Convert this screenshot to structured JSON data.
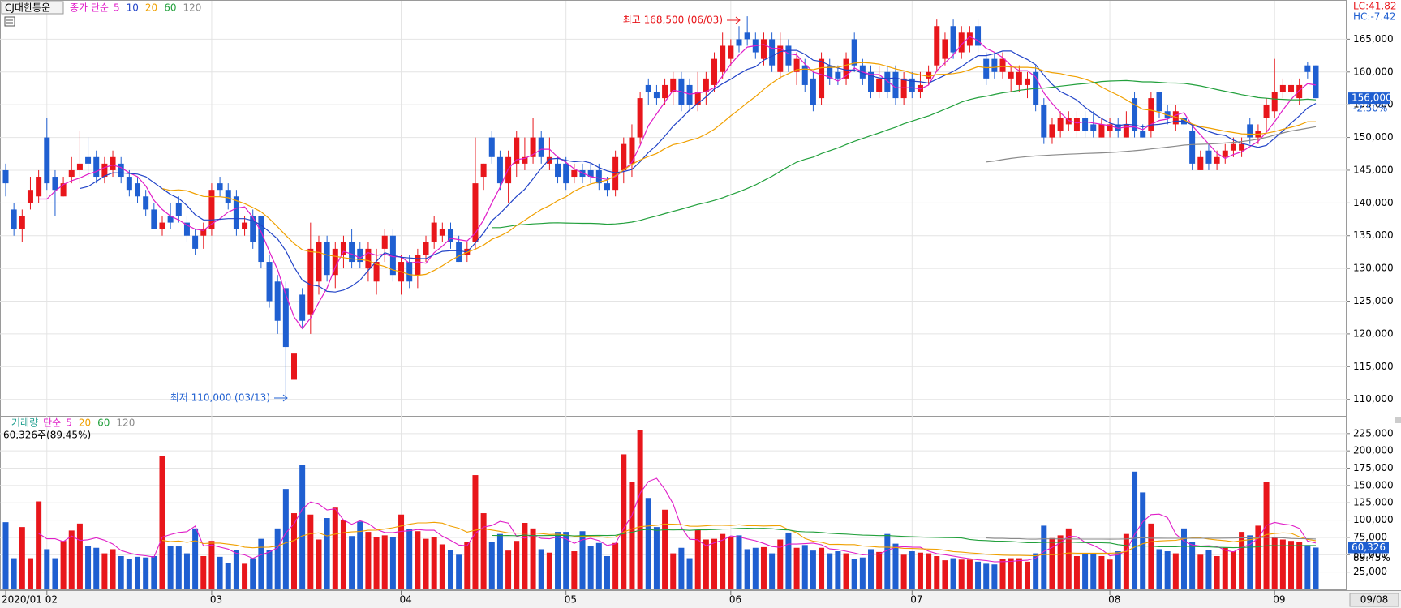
{
  "chart_data": {
    "type": "candlestick",
    "title": "CJ대한통운",
    "categories": [
      "2020/01",
      null,
      null,
      null,
      null,
      "02",
      null,
      null,
      null,
      null,
      null,
      null,
      null,
      null,
      null,
      null,
      null,
      null,
      null,
      null,
      null,
      null,
      null,
      null,
      null,
      "03",
      null,
      null,
      null,
      null,
      null,
      null,
      null,
      null,
      null,
      null,
      null,
      null,
      null,
      null,
      null,
      null,
      null,
      null,
      null,
      null,
      null,
      null,
      "04",
      null,
      null,
      null,
      null,
      null,
      null,
      null,
      null,
      null,
      null,
      null,
      null,
      null,
      null,
      null,
      null,
      null,
      null,
      null,
      "05",
      null,
      null,
      null,
      null,
      null,
      null,
      null,
      null,
      null,
      null,
      null,
      null,
      null,
      null,
      null,
      null,
      null,
      null,
      null,
      "06",
      null,
      null,
      null,
      null,
      null,
      null,
      null,
      null,
      null,
      null,
      null,
      null,
      null,
      null,
      null,
      null,
      null,
      null,
      null,
      null,
      null,
      "07",
      null,
      null,
      null,
      null,
      null,
      null,
      null,
      null,
      null,
      null,
      null,
      null,
      null,
      null,
      null,
      null,
      null,
      null,
      null,
      null,
      null,
      null,
      null,
      "08",
      null,
      null,
      null,
      null,
      null,
      null,
      null,
      null,
      null,
      null,
      null,
      null,
      null,
      null,
      null,
      null,
      null,
      null,
      null,
      "09",
      null,
      null,
      null,
      null,
      null
    ],
    "open": [
      145000,
      139000,
      136000,
      140000,
      141000,
      150000,
      144000,
      141000,
      144000,
      145000,
      147000,
      147000,
      144000,
      145000,
      146000,
      144000,
      143000,
      141000,
      139000,
      136000,
      138000,
      140000,
      137000,
      135000,
      135000,
      136000,
      143000,
      142000,
      141000,
      136000,
      138000,
      138000,
      131000,
      128000,
      127000,
      113000,
      126000,
      123000,
      128000,
      134000,
      129000,
      132000,
      134000,
      133000,
      130000,
      128000,
      133000,
      135000,
      128000,
      131000,
      129000,
      132000,
      134000,
      135000,
      136000,
      134000,
      132000,
      134000,
      144000,
      150000,
      147000,
      143000,
      146000,
      146000,
      147000,
      150000,
      146000,
      146000,
      146000,
      144000,
      145000,
      145000,
      145000,
      143000,
      142000,
      145000,
      146000,
      150000,
      158000,
      157000,
      156000,
      157000,
      159000,
      158000,
      155000,
      157000,
      158000,
      160000,
      162000,
      165000,
      166000,
      165000,
      162000,
      165000,
      160000,
      164000,
      160000,
      161000,
      159000,
      156000,
      161000,
      160000,
      159000,
      165000,
      161000,
      160000,
      157000,
      160000,
      160000,
      156000,
      159000,
      157000,
      159000,
      161000,
      162000,
      167000,
      163000,
      164000,
      167000,
      162000,
      162000,
      160000,
      159000,
      158000,
      158000,
      160000,
      155000,
      150000,
      151000,
      152000,
      151000,
      153000,
      152000,
      150000,
      151000,
      152000,
      150000,
      156000,
      151000,
      151000,
      157000,
      154000,
      152000,
      153000,
      151000,
      145000,
      148000,
      146000,
      147000,
      148000,
      148000,
      152000,
      150000,
      153000,
      154000,
      157000,
      157000,
      156000,
      161000,
      161000
    ],
    "high": [
      146000,
      140000,
      139000,
      144000,
      145000,
      153000,
      145000,
      144000,
      147000,
      151000,
      150000,
      148000,
      147000,
      148000,
      147000,
      145000,
      144000,
      142000,
      140000,
      138000,
      140000,
      141000,
      138000,
      136000,
      137000,
      143000,
      144000,
      143000,
      142000,
      138000,
      139000,
      138000,
      132000,
      129000,
      128000,
      118000,
      127000,
      137000,
      135000,
      135000,
      134000,
      135000,
      136000,
      134000,
      134000,
      133000,
      136000,
      136000,
      132000,
      132000,
      133000,
      135000,
      138000,
      137000,
      137000,
      135000,
      134000,
      150000,
      146000,
      151000,
      148000,
      148000,
      151000,
      150000,
      153000,
      151000,
      150000,
      147000,
      147000,
      146000,
      146000,
      146000,
      146000,
      144000,
      148000,
      150000,
      152000,
      157000,
      159000,
      158000,
      159000,
      160000,
      160000,
      159000,
      160000,
      160000,
      163000,
      166000,
      165000,
      167000,
      168500,
      166000,
      166000,
      166000,
      166000,
      165000,
      163000,
      162000,
      160000,
      163000,
      162000,
      161000,
      163000,
      166000,
      162000,
      161000,
      161000,
      161000,
      161000,
      160000,
      160000,
      160000,
      161000,
      168000,
      166000,
      168000,
      167000,
      167000,
      168000,
      163000,
      163000,
      163000,
      161000,
      161000,
      160000,
      161000,
      156000,
      153000,
      154000,
      154000,
      154000,
      154000,
      154000,
      153000,
      153000,
      153000,
      154000,
      157000,
      152000,
      157000,
      157000,
      155000,
      155000,
      154000,
      152000,
      148000,
      149000,
      148000,
      149000,
      150000,
      150000,
      153000,
      152000,
      156000,
      162000,
      159000,
      159000,
      159000,
      161500,
      161000
    ],
    "low": [
      141000,
      135000,
      134000,
      139000,
      140000,
      142000,
      138000,
      141000,
      143000,
      143000,
      144000,
      143000,
      143000,
      144000,
      143000,
      141000,
      140000,
      138000,
      136000,
      135000,
      136000,
      137000,
      134000,
      132000,
      133000,
      135000,
      141000,
      139000,
      135000,
      135000,
      133000,
      130000,
      124000,
      120000,
      110000,
      112000,
      121000,
      120000,
      126000,
      128000,
      127000,
      130000,
      130000,
      130000,
      128000,
      126000,
      131000,
      128000,
      126000,
      127000,
      127000,
      131000,
      133000,
      134000,
      133000,
      131000,
      131000,
      133000,
      142000,
      146000,
      142000,
      140000,
      144000,
      145000,
      146000,
      146000,
      145000,
      143000,
      142000,
      143000,
      143000,
      143000,
      142000,
      141000,
      141000,
      143000,
      144000,
      149000,
      155000,
      155000,
      155000,
      155000,
      154000,
      154000,
      154000,
      155000,
      157000,
      159000,
      161000,
      163000,
      164000,
      162000,
      161000,
      160000,
      159000,
      160000,
      158000,
      157000,
      154000,
      155000,
      158000,
      158000,
      158000,
      160000,
      158000,
      156000,
      156000,
      156000,
      155000,
      155000,
      156000,
      156000,
      158000,
      160000,
      161000,
      162000,
      162000,
      163000,
      163000,
      158000,
      159000,
      159000,
      157000,
      157000,
      156000,
      154000,
      149000,
      149000,
      150000,
      151000,
      150000,
      150000,
      150000,
      150000,
      150000,
      150000,
      150000,
      150000,
      150000,
      150000,
      153000,
      152000,
      151000,
      151000,
      145000,
      145000,
      145000,
      145000,
      146000,
      147000,
      147000,
      149000,
      149000,
      151000,
      153000,
      156000,
      156000,
      155000,
      159000,
      156000
    ],
    "close": [
      143000,
      136000,
      138000,
      142000,
      144000,
      143000,
      142000,
      143000,
      145000,
      146000,
      146000,
      144000,
      146000,
      147000,
      144000,
      142000,
      141000,
      139000,
      136000,
      137000,
      137000,
      138000,
      135000,
      133000,
      136000,
      142000,
      142000,
      140000,
      136000,
      137000,
      134000,
      131000,
      125000,
      122000,
      118000,
      117000,
      122000,
      133000,
      134000,
      129000,
      133000,
      134000,
      131000,
      131000,
      133000,
      131000,
      135000,
      129000,
      131000,
      128000,
      132000,
      134000,
      137000,
      136000,
      134000,
      131000,
      133000,
      143000,
      146000,
      147000,
      143000,
      147000,
      150000,
      147000,
      150000,
      147000,
      147000,
      144000,
      143000,
      145000,
      144000,
      144000,
      143000,
      142000,
      147000,
      149000,
      150000,
      156000,
      157000,
      156000,
      158000,
      159000,
      155000,
      155000,
      157000,
      159000,
      162000,
      164000,
      164000,
      164000,
      165000,
      163000,
      165000,
      161000,
      164000,
      161000,
      162000,
      158000,
      155000,
      162000,
      159000,
      159000,
      162000,
      161000,
      159000,
      157000,
      159000,
      157000,
      156000,
      159000,
      157000,
      158000,
      160000,
      167000,
      165000,
      163000,
      166000,
      166000,
      164000,
      159000,
      160000,
      162000,
      160000,
      160000,
      159000,
      155000,
      150000,
      152000,
      153000,
      153000,
      153000,
      151000,
      151000,
      152000,
      152000,
      151000,
      152000,
      151000,
      150000,
      156000,
      154000,
      153000,
      154000,
      152000,
      146000,
      147000,
      146000,
      147000,
      148000,
      149000,
      149000,
      150000,
      151000,
      155000,
      157000,
      158000,
      158000,
      158000,
      160000,
      156000
    ],
    "up_color": "#e8161b",
    "down_color": "#1f5fd1",
    "ylim": [
      108600,
      170000
    ],
    "yticks": [
      {
        "value": 110000,
        "label": "110,000"
      },
      {
        "value": 115000,
        "label": "115,000"
      },
      {
        "value": 120000,
        "label": "120,000"
      },
      {
        "value": 125000,
        "label": "125,000"
      },
      {
        "value": 130000,
        "label": "130,000"
      },
      {
        "value": 135000,
        "label": "135,000"
      },
      {
        "value": 140000,
        "label": "140,000"
      },
      {
        "value": 145000,
        "label": "145,000"
      },
      {
        "value": 150000,
        "label": "150,000"
      },
      {
        "value": 155000,
        "label": "155,000"
      },
      {
        "value": 160000,
        "label": "160,000"
      },
      {
        "value": 165000,
        "label": "165,000"
      }
    ],
    "grid": true,
    "ma_label": "종가 단순",
    "ma": [
      {
        "period": 5,
        "color": "#e01ec8"
      },
      {
        "period": 10,
        "color": "#2244c8"
      },
      {
        "period": 20,
        "color": "#f0a000"
      },
      {
        "period": 60,
        "color": "#22a03c"
      },
      {
        "period": 120,
        "color": "#8a8a8a"
      }
    ],
    "volume": {
      "name": "거래량",
      "ma_label": "단순",
      "values": [
        97000,
        45000,
        90000,
        45000,
        127000,
        58000,
        45000,
        70000,
        85000,
        95000,
        63000,
        60000,
        52000,
        58000,
        48000,
        44000,
        47000,
        46000,
        48000,
        192000,
        63000,
        62000,
        52000,
        88000,
        48000,
        70000,
        47000,
        38000,
        57000,
        37000,
        45000,
        73000,
        57000,
        88000,
        145000,
        110000,
        180000,
        108000,
        72000,
        103000,
        118000,
        100000,
        77000,
        98000,
        83000,
        75000,
        78000,
        75000,
        108000,
        87000,
        84000,
        73000,
        75000,
        65000,
        57000,
        50000,
        68000,
        165000,
        110000,
        68000,
        80000,
        56000,
        70000,
        96000,
        88000,
        58000,
        53000,
        83000,
        83000,
        55000,
        84000,
        63000,
        67000,
        48000,
        67000,
        195000,
        155000,
        230000,
        132000,
        90000,
        115000,
        52000,
        60000,
        45000,
        86000,
        72000,
        73000,
        80000,
        75000,
        78000,
        58000,
        60000,
        61000,
        52000,
        72000,
        82000,
        60000,
        64000,
        56000,
        60000,
        52000,
        55000,
        52000,
        44000,
        46000,
        58000,
        54000,
        80000,
        66000,
        50000,
        55000,
        53000,
        52000,
        48000,
        42000,
        45000,
        43000,
        43000,
        40000,
        37000,
        36000,
        44000,
        45000,
        45000,
        40000,
        52000,
        92000,
        74000,
        78000,
        88000,
        48000,
        52000,
        52000,
        48000,
        43000,
        55000,
        80000,
        170000,
        140000,
        95000,
        58000,
        55000,
        52000,
        88000,
        68000,
        50000,
        57000,
        48000,
        60000,
        55000,
        83000,
        78000,
        92000,
        155000,
        75000,
        72000,
        70000,
        68000,
        64000,
        60326
      ],
      "ylim": [
        0,
        240000
      ],
      "yticks": [
        {
          "value": 25000,
          "label": "25,000"
        },
        {
          "value": 50000,
          "label": "50,000"
        },
        {
          "value": 75000,
          "label": "75,000"
        },
        {
          "value": 100000,
          "label": "100,000"
        },
        {
          "value": 125000,
          "label": "125,000"
        },
        {
          "value": 150000,
          "label": "150,000"
        },
        {
          "value": 175000,
          "label": "175,000"
        },
        {
          "value": 200000,
          "label": "200,000"
        },
        {
          "value": 225000,
          "label": "225,000"
        }
      ],
      "ma": [
        {
          "period": 5,
          "color": "#e01ec8"
        },
        {
          "period": 20,
          "color": "#f0a000"
        },
        {
          "period": 60,
          "color": "#22a03c"
        },
        {
          "period": 120,
          "color": "#8a8a8a"
        }
      ]
    },
    "annotations": {
      "high": "최고 168,500 (06/03)",
      "low": "최저 110,000 (03/13)",
      "lc": "LC:41.82",
      "hc": "HC:-7.42",
      "last_price": "156,000",
      "change": "-2.50%",
      "last_volume": "60,326",
      "volume_ratio": "89.45%",
      "volume_info": "60,326주(89.45%)",
      "date": "09/08"
    }
  }
}
